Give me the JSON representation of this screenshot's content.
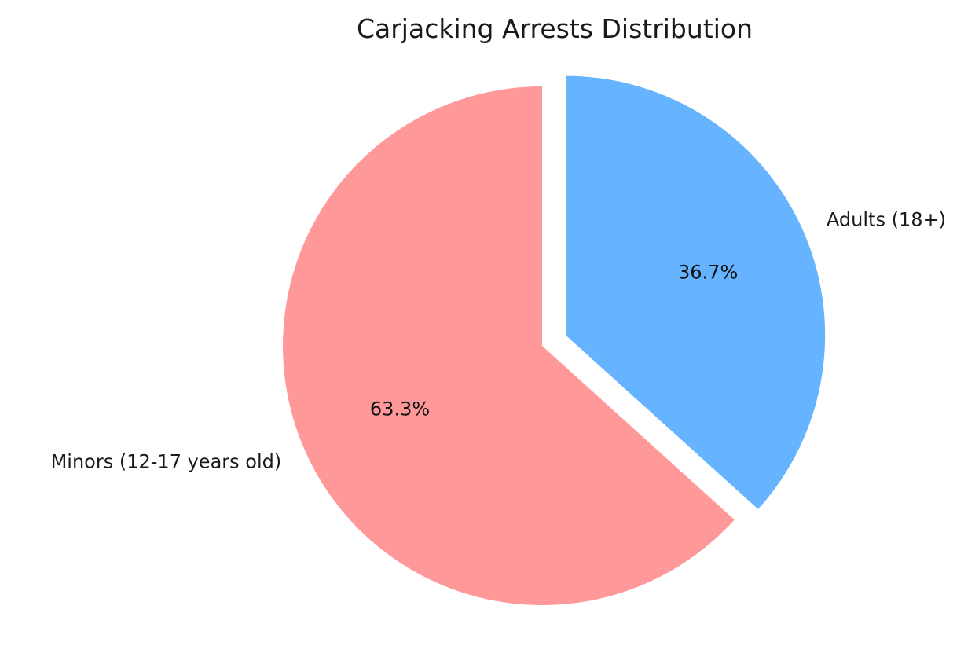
{
  "chart_data": {
    "type": "pie",
    "title": "Carjacking Arrests Distribution",
    "slices": [
      {
        "label": "Minors (12-17 years old)",
        "value": 63.3,
        "pct_label": "63.3%",
        "color": "#ff9999",
        "exploded": false
      },
      {
        "label": "Adults (18+)",
        "value": 36.7,
        "pct_label": "36.7%",
        "color": "#66b3ff",
        "exploded": true
      }
    ],
    "start_angle_deg": 90,
    "direction": "counterclockwise"
  }
}
